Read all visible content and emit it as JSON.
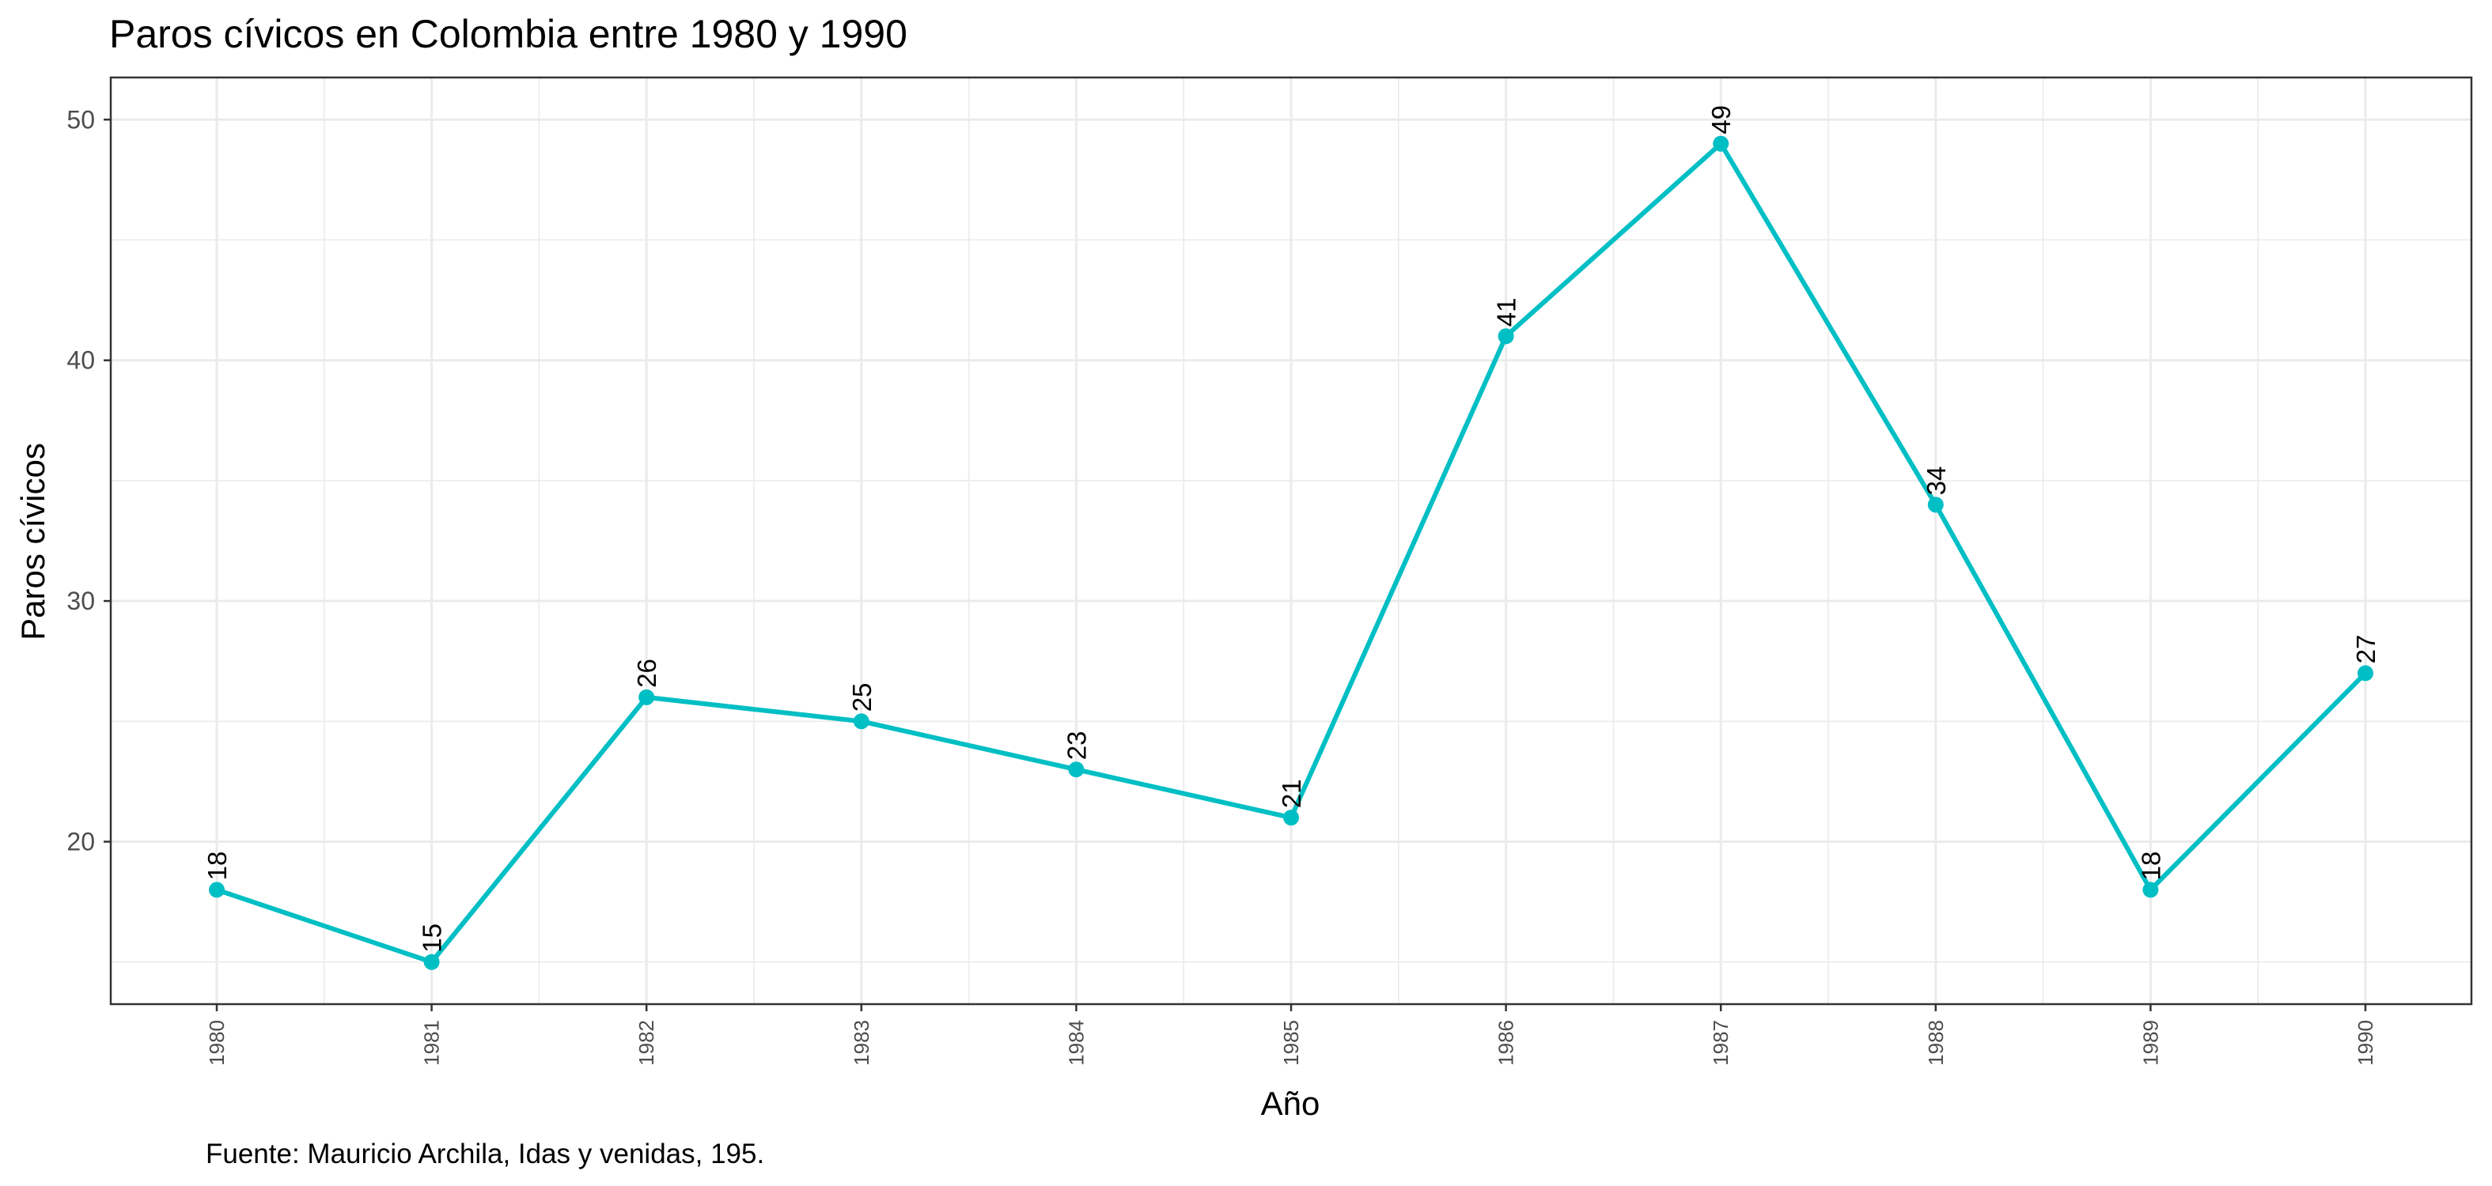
{
  "chart_data": {
    "type": "line",
    "title": "Paros cívicos en Colombia entre 1980 y 1990",
    "xlabel": "Año",
    "ylabel": "Paros cívicos",
    "caption": "Fuente: Mauricio Archila, Idas y venidas, 195.",
    "x": [
      "1980",
      "1981",
      "1982",
      "1983",
      "1984",
      "1985",
      "1986",
      "1987",
      "1988",
      "1989",
      "1990"
    ],
    "values": [
      18,
      15,
      26,
      25,
      23,
      21,
      41,
      49,
      34,
      18,
      27
    ],
    "data_labels": [
      "18",
      "15",
      "26",
      "25",
      "23",
      "21",
      "41",
      "49",
      "34",
      "18",
      "27"
    ],
    "ylim": [
      13.25,
      51.75
    ],
    "y_ticks": [
      20,
      30,
      40,
      50
    ],
    "y_tick_labels": [
      "20",
      "30",
      "40",
      "50"
    ],
    "grid": true,
    "legend": "none",
    "colors": {
      "series": "#00BFC4",
      "grid": "#ebebeb",
      "panel_border": "#333333"
    }
  }
}
